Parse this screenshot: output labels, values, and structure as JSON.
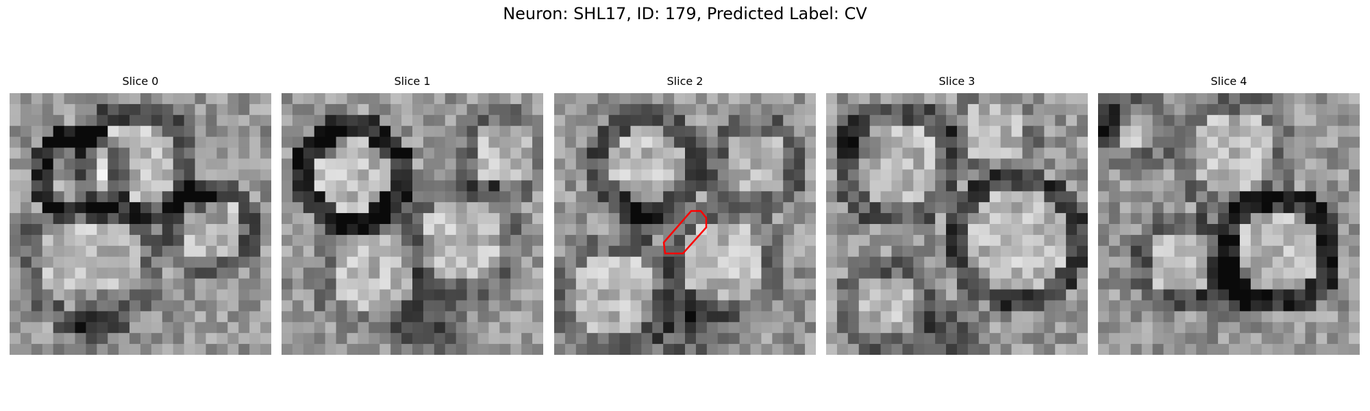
{
  "figure": {
    "title": "Neuron: SHL17, ID: 179, Predicted Label: CV"
  },
  "panels": [
    {
      "title": "Slice 0"
    },
    {
      "title": "Slice 1"
    },
    {
      "title": "Slice 2"
    },
    {
      "title": "Slice 3"
    },
    {
      "title": "Slice 4"
    }
  ],
  "overlay": {
    "slice": "Slice 2",
    "contour_color": "#ff0000"
  },
  "colormap": "gray"
}
